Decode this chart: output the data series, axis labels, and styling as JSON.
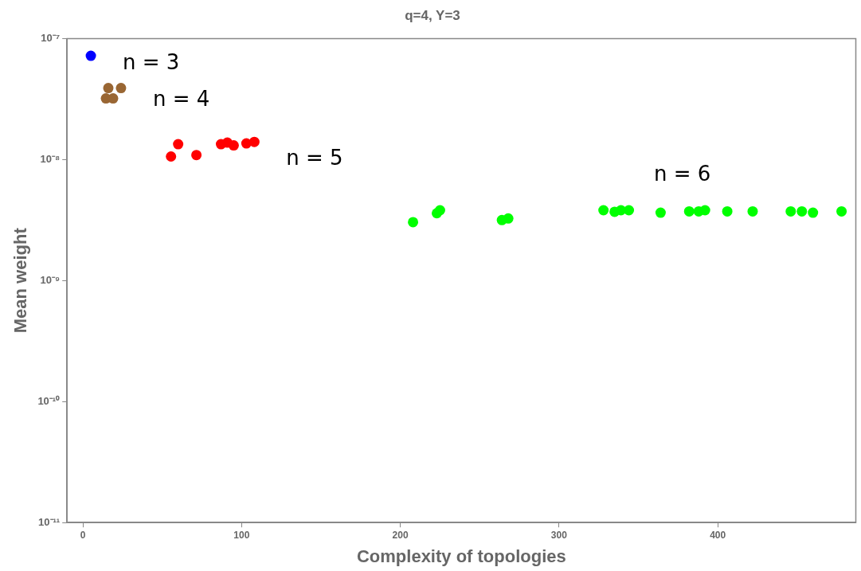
{
  "chart_data": {
    "type": "scatter",
    "title": "q=4, Y=3",
    "xlabel": "Complexity of topologies",
    "ylabel": "Mean weight",
    "log": "y",
    "grid": false,
    "marker": "circle",
    "xlim": [
      -10,
      487
    ],
    "ylim": [
      1e-11,
      1e-07
    ],
    "xticks": [
      0,
      100,
      200,
      300,
      400
    ],
    "yticks": [
      {
        "value": 1e-11,
        "label": "10⁻¹¹"
      },
      {
        "value": 1e-10,
        "label": "10⁻¹⁰"
      },
      {
        "value": 1e-09,
        "label": "10⁻⁹"
      },
      {
        "value": 1e-08,
        "label": "10⁻⁸"
      },
      {
        "value": 1e-07,
        "label": "10⁻⁷"
      }
    ],
    "series": [
      {
        "color": "#0000ff",
        "x": [
          5
        ],
        "values": [
          7.2e-08
        ]
      },
      {
        "color": "#996633",
        "x": [
          14.5,
          19,
          16,
          24
        ],
        "values": [
          3.2e-08,
          3.2e-08,
          3.9e-08,
          3.9e-08
        ]
      },
      {
        "color": "#ff0000",
        "x": [
          55.5,
          60,
          71.5,
          87,
          91,
          95,
          103,
          108
        ],
        "values": [
          1.06e-08,
          1.34e-08,
          1.09e-08,
          1.34e-08,
          1.38e-08,
          1.31e-08,
          1.36e-08,
          1.4e-08
        ]
      },
      {
        "color": "#00ff00",
        "x": [
          208,
          223,
          225,
          264,
          268,
          328,
          335,
          339,
          344,
          364,
          382,
          388,
          392,
          406,
          422,
          446,
          453,
          460,
          478
        ],
        "values": [
          3.04e-09,
          3.6e-09,
          3.81e-09,
          3.16e-09,
          3.26e-09,
          3.81e-09,
          3.7e-09,
          3.81e-09,
          3.81e-09,
          3.64e-09,
          3.73e-09,
          3.73e-09,
          3.81e-09,
          3.73e-09,
          3.73e-09,
          3.73e-09,
          3.73e-09,
          3.64e-09,
          3.73e-09
        ]
      }
    ],
    "annotations": [
      "n = 3",
      "n = 4",
      "n = 5",
      "n = 6"
    ]
  }
}
